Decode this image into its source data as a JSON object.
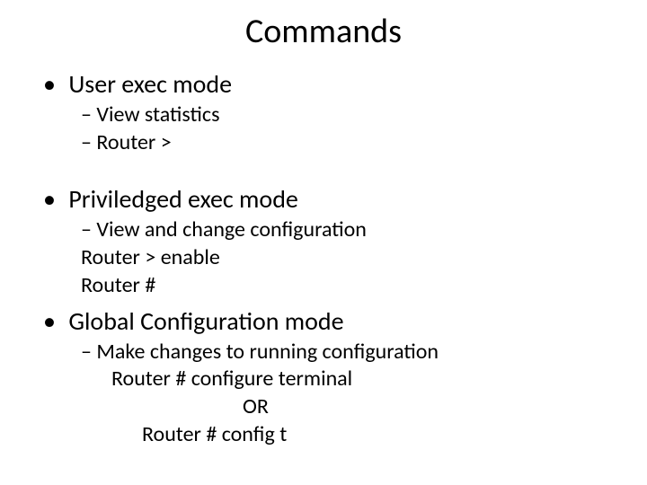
{
  "title": "Commands",
  "sections": [
    {
      "heading": "User exec mode",
      "items": [
        {
          "text": "View statistics",
          "dash": true
        },
        {
          "text": "Router >",
          "dash": true
        }
      ]
    },
    {
      "heading": "Priviledged exec mode",
      "items": [
        {
          "text": "View and change configuration",
          "dash": true
        },
        {
          "text": "Router >  enable",
          "dash": false
        },
        {
          "text": "Router #",
          "dash": false
        }
      ]
    },
    {
      "heading": "Global Configuration mode",
      "items": [
        {
          "text": "Make changes to running configuration",
          "dash": true
        },
        {
          "text": "Router # configure  terminal",
          "dash": false,
          "indent": "indent1"
        },
        {
          "text": "OR",
          "dash": false,
          "indent": "indent-or"
        },
        {
          "text": "Router # config t",
          "dash": false,
          "indent": "indent2"
        }
      ]
    }
  ],
  "colors": {
    "background": "#ffffff",
    "text": "#000000"
  },
  "fonts": {
    "family": "Calibri",
    "title_size": 38,
    "l1_size": 28,
    "l2_size": 24
  }
}
